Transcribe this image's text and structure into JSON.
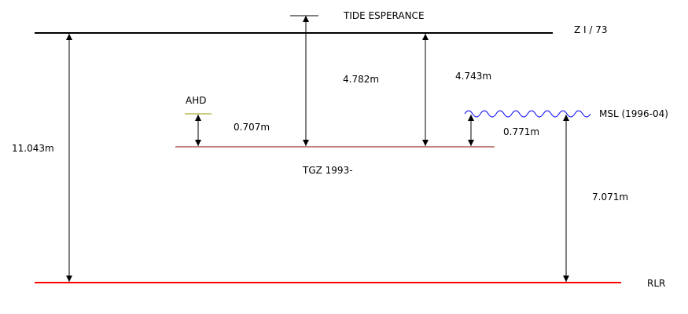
{
  "title": "TIDE ESPERANCE",
  "levels": {
    "zi73": "Z I / 73",
    "ahd": "AHD",
    "msl": "MSL (1996-04)",
    "tgz": "TGZ 1993-",
    "rlr": "RLR"
  },
  "measurements": {
    "zi_to_rlr": "11.043m",
    "zi_to_tgz_a": "4.782m",
    "zi_to_tgz_b": "4.743m",
    "ahd_to_tgz": "0.707m",
    "msl_to_tgz": "0.771m",
    "msl_to_rlr": "7.071m"
  },
  "colors": {
    "zi_line": "#000000",
    "tgz_line": "#8b0000",
    "rlr_line": "#ff0000",
    "ahd_mark": "#9a9a00",
    "msl_wave": "#0000ff",
    "arrows": "#000000"
  }
}
